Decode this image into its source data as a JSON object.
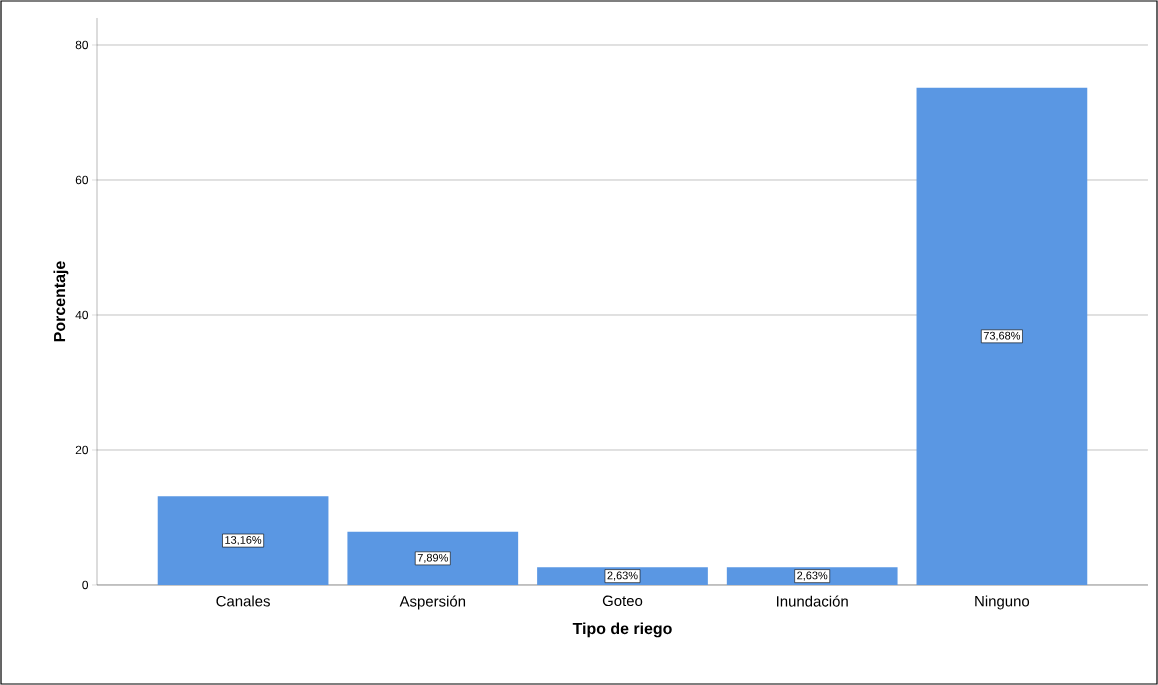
{
  "chart_data": {
    "type": "bar",
    "xlabel": "Tipo de riego",
    "ylabel": "Porcentaje",
    "categories": [
      "Canales",
      "Aspersión",
      "Goteo",
      "Inundación",
      "Ninguno"
    ],
    "values": [
      13.16,
      7.89,
      2.63,
      2.63,
      73.68
    ],
    "value_labels": [
      "13,16%",
      "7,89%",
      "2,63%",
      "2,63%",
      "73,68%"
    ],
    "color": "#5a97e3",
    "ylim": [
      0,
      84
    ],
    "yticks": [
      0,
      20,
      40,
      60,
      80
    ],
    "grid": "y"
  }
}
